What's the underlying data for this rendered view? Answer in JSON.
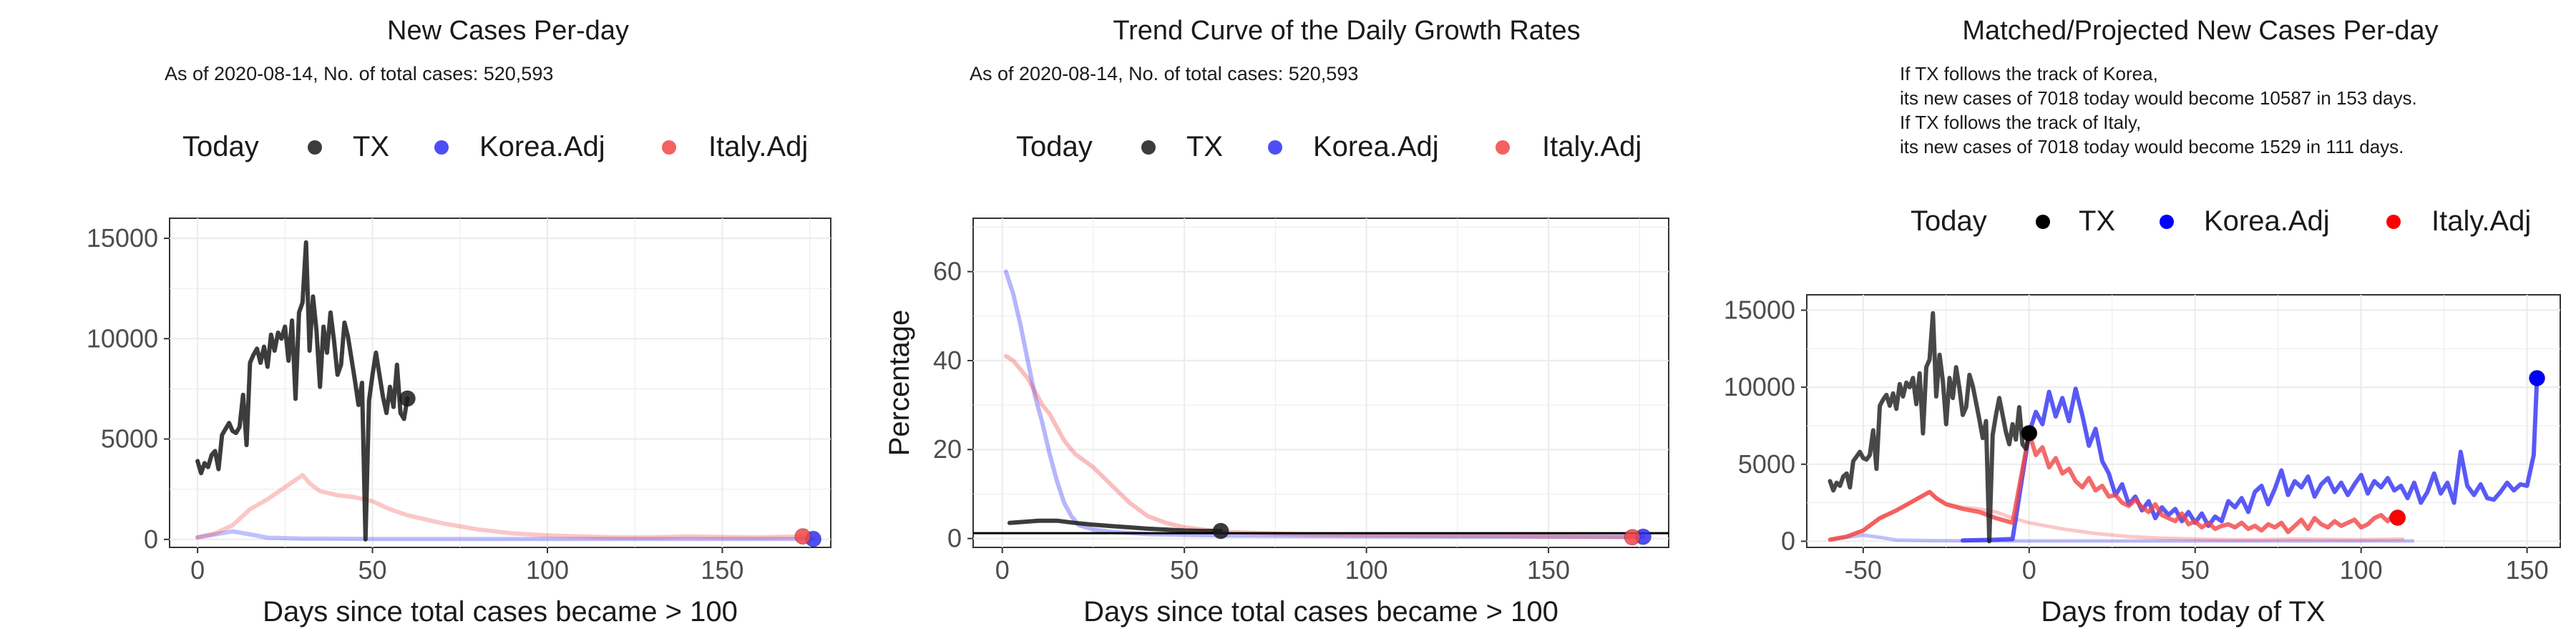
{
  "chart_data": [
    {
      "type": "line",
      "title": "New Cases Per-day",
      "subtitle": "As of 2020-08-14, No. of total cases: 520,593",
      "legend": {
        "title": "Today",
        "entries": [
          "TX",
          "Korea.Adj",
          "Italy.Adj"
        ],
        "position": "top"
      },
      "xlabel": "Days since total cases became > 100",
      "ylabel": "",
      "xlim": [
        -8,
        181
      ],
      "ylim": [
        -400,
        16000
      ],
      "xticks": [
        0,
        50,
        100,
        150
      ],
      "yticks": [
        0,
        5000,
        10000,
        15000
      ],
      "grid": true,
      "series": [
        {
          "name": "TX",
          "color": "#1a1a1a",
          "x": [
            0,
            1,
            2,
            3,
            4,
            5,
            6,
            7,
            8,
            9,
            10,
            11,
            12,
            13,
            14,
            15,
            16,
            17,
            18,
            19,
            20,
            21,
            22,
            23,
            24,
            25,
            26,
            27,
            28,
            29,
            30,
            31,
            32,
            33,
            34,
            35,
            36,
            37,
            38,
            39,
            40,
            41,
            42,
            43,
            44,
            45,
            46,
            47,
            48,
            49,
            50,
            51,
            52,
            53,
            54,
            55,
            56,
            57,
            58,
            59,
            60
          ],
          "y": [
            3900,
            3300,
            3800,
            3600,
            4200,
            4400,
            3500,
            5200,
            5500,
            5800,
            5400,
            5300,
            5600,
            7200,
            4700,
            8800,
            9200,
            9500,
            8800,
            9600,
            8600,
            10200,
            9400,
            10300,
            10000,
            10600,
            8900,
            10900,
            7000,
            11300,
            11800,
            14800,
            9400,
            12100,
            10400,
            7600,
            10600,
            9300,
            11300,
            9900,
            8200,
            8700,
            10800,
            10100,
            9000,
            7900,
            6700,
            7800,
            0,
            6900,
            8200,
            9300,
            8200,
            7100,
            6300,
            7600,
            6600,
            8700,
            6300,
            6000,
            7018
          ]
        },
        {
          "name": "Korea.Adj",
          "color": "#2f2ff5",
          "x": [
            0,
            5,
            10,
            15,
            20,
            30,
            40,
            50,
            60,
            80,
            100,
            120,
            140,
            160,
            176
          ],
          "y": [
            100,
            250,
            400,
            250,
            80,
            40,
            30,
            20,
            20,
            20,
            20,
            20,
            20,
            20,
            20
          ]
        },
        {
          "name": "Italy.Adj",
          "color": "#f14545",
          "x": [
            0,
            5,
            10,
            15,
            20,
            25,
            30,
            32,
            35,
            40,
            45,
            50,
            55,
            60,
            70,
            80,
            90,
            100,
            110,
            120,
            130,
            140,
            150,
            160,
            173
          ],
          "y": [
            100,
            300,
            700,
            1500,
            2000,
            2600,
            3200,
            2800,
            2400,
            2200,
            2100,
            1900,
            1500,
            1200,
            800,
            500,
            300,
            200,
            150,
            100,
            100,
            150,
            120,
            100,
            150
          ]
        }
      ],
      "today_points": [
        {
          "series": "TX",
          "x": 60,
          "y": 7018
        },
        {
          "series": "Korea.Adj",
          "x": 176,
          "y": 20
        },
        {
          "series": "Italy.Adj",
          "x": 173,
          "y": 150
        }
      ]
    },
    {
      "type": "line",
      "title": "Trend Curve of the Daily Growth Rates",
      "subtitle": "As of 2020-08-14, No. of total cases: 520,593",
      "legend": {
        "title": "Today",
        "entries": [
          "TX",
          "Korea.Adj",
          "Italy.Adj"
        ],
        "position": "top"
      },
      "xlabel": "Days since total cases became > 100",
      "ylabel": "Percentage",
      "xlim": [
        -8,
        183
      ],
      "ylim": [
        -2,
        72
      ],
      "xticks": [
        0,
        50,
        100,
        150
      ],
      "yticks": [
        0,
        20,
        40,
        60
      ],
      "grid": true,
      "reference_line_y": 1.2,
      "series": [
        {
          "name": "TX",
          "color": "#1a1a1a",
          "x": [
            2,
            5,
            10,
            15,
            20,
            25,
            30,
            35,
            40,
            45,
            50,
            55,
            60
          ],
          "y": [
            3.5,
            3.7,
            4,
            4,
            3.5,
            3.1,
            2.8,
            2.5,
            2.2,
            2,
            1.8,
            1.7,
            1.7
          ]
        },
        {
          "name": "Korea.Adj",
          "color": "#2f2ff5",
          "x": [
            1,
            3,
            5,
            7,
            9,
            11,
            13,
            15,
            17,
            19,
            21,
            25,
            30,
            40,
            60,
            100,
            176
          ],
          "y": [
            60,
            55,
            48,
            40,
            32,
            26,
            19,
            13,
            8,
            5,
            3,
            2,
            1.5,
            1,
            0.7,
            0.5,
            0.4
          ]
        },
        {
          "name": "Italy.Adj",
          "color": "#f14545",
          "x": [
            1,
            3,
            5,
            7,
            9,
            11,
            13,
            15,
            17,
            20,
            25,
            30,
            35,
            40,
            45,
            50,
            60,
            80,
            100,
            130,
            173
          ],
          "y": [
            41,
            40,
            38,
            36,
            33,
            30,
            28,
            25,
            22,
            19,
            16,
            12,
            8,
            5,
            3.5,
            2.5,
            1.5,
            1,
            0.8,
            0.6,
            0.3
          ]
        }
      ],
      "today_points": [
        {
          "series": "TX",
          "x": 60,
          "y": 1.7
        },
        {
          "series": "Korea.Adj",
          "x": 176,
          "y": 0.4
        },
        {
          "series": "Italy.Adj",
          "x": 173,
          "y": 0.3
        }
      ]
    },
    {
      "type": "line",
      "title": "Matched/Projected New Cases Per-day",
      "annotations": [
        "If TX follows the track of Korea,",
        "its new cases of 7018 today would become 10587 in 153 days.",
        "If TX follows the track of Italy,",
        "its new cases of 7018 today would become 1529 in 111 days."
      ],
      "legend": {
        "title": "Today",
        "entries": [
          "TX",
          "Korea.Adj",
          "Italy.Adj"
        ],
        "position": "top"
      },
      "xlabel": "Days from today of TX",
      "ylabel": "",
      "xlim": [
        -67,
        160
      ],
      "ylim": [
        -400,
        16000
      ],
      "xticks": [
        -50,
        0,
        50,
        100,
        150
      ],
      "yticks": [
        0,
        5000,
        10000,
        15000
      ],
      "grid": true,
      "series": [
        {
          "name": "TX",
          "color": "#1a1a1a",
          "x": [
            -60,
            -59,
            -58,
            -57,
            -56,
            -55,
            -54,
            -53,
            -52,
            -51,
            -50,
            -49,
            -48,
            -47,
            -46,
            -45,
            -44,
            -43,
            -42,
            -41,
            -40,
            -39,
            -38,
            -37,
            -36,
            -35,
            -34,
            -33,
            -32,
            -31,
            -30,
            -29,
            -28,
            -27,
            -26,
            -25,
            -24,
            -23,
            -22,
            -21,
            -20,
            -19,
            -18,
            -17,
            -16,
            -15,
            -14,
            -13,
            -12,
            -11,
            -10,
            -9,
            -8,
            -7,
            -6,
            -5,
            -4,
            -3,
            -2,
            -1,
            0
          ],
          "y": [
            3900,
            3300,
            3800,
            3600,
            4200,
            4400,
            3500,
            5200,
            5500,
            5800,
            5400,
            5300,
            5600,
            7200,
            4700,
            8800,
            9200,
            9500,
            8800,
            9600,
            8600,
            10200,
            9400,
            10300,
            10000,
            10600,
            8900,
            10900,
            7000,
            11300,
            11800,
            14800,
            9400,
            12100,
            10400,
            7600,
            10600,
            9300,
            11300,
            9900,
            8200,
            8700,
            10800,
            10100,
            9000,
            7900,
            6700,
            7800,
            0,
            6900,
            8200,
            9300,
            8200,
            7100,
            6300,
            7600,
            6600,
            8700,
            6300,
            6000,
            7018
          ]
        },
        {
          "name": "Korea.Adj",
          "color": "#2f2ff5",
          "x": [
            -20,
            -10,
            -5,
            0,
            2,
            4,
            6,
            8,
            10,
            12,
            14,
            16,
            18,
            20,
            22,
            24,
            26,
            28,
            30,
            32,
            34,
            36,
            38,
            40,
            42,
            44,
            46,
            48,
            50,
            52,
            54,
            56,
            58,
            60,
            62,
            64,
            66,
            68,
            70,
            72,
            74,
            76,
            78,
            80,
            82,
            84,
            86,
            88,
            90,
            92,
            94,
            96,
            98,
            100,
            102,
            104,
            106,
            108,
            110,
            112,
            114,
            116,
            118,
            120,
            122,
            124,
            126,
            128,
            130,
            132,
            134,
            136,
            138,
            140,
            142,
            144,
            146,
            148,
            150,
            152,
            153
          ],
          "y": [
            50,
            100,
            150,
            7018,
            8400,
            7600,
            9700,
            8100,
            9300,
            7800,
            9900,
            8200,
            6200,
            7300,
            5200,
            4400,
            3000,
            3700,
            2400,
            2900,
            2000,
            2600,
            1500,
            2200,
            1700,
            2100,
            1300,
            1900,
            1200,
            1800,
            1000,
            1600,
            1300,
            2600,
            2200,
            2800,
            1900,
            3200,
            3600,
            2400,
            3400,
            4600,
            3000,
            3900,
            3500,
            4200,
            2900,
            3700,
            4100,
            3200,
            3800,
            3000,
            3700,
            4300,
            3100,
            3900,
            3500,
            4100,
            3300,
            3600,
            2800,
            3800,
            2500,
            3200,
            4400,
            3100,
            3800,
            2500,
            5800,
            3600,
            3000,
            3700,
            2800,
            2700,
            3200,
            3800,
            3300,
            3700,
            3600,
            5600,
            10587
          ]
        },
        {
          "name": "Italy.Adj",
          "color": "#f14545",
          "x": [
            -60,
            -55,
            -50,
            -45,
            -40,
            -35,
            -30,
            -28,
            -25,
            -20,
            -15,
            -10,
            -5,
            0,
            2,
            4,
            6,
            8,
            10,
            12,
            14,
            16,
            18,
            20,
            22,
            24,
            26,
            28,
            30,
            32,
            34,
            36,
            38,
            40,
            42,
            44,
            46,
            48,
            50,
            52,
            54,
            56,
            58,
            60,
            62,
            64,
            66,
            68,
            70,
            72,
            74,
            76,
            78,
            80,
            82,
            84,
            86,
            88,
            90,
            92,
            94,
            96,
            98,
            100,
            102,
            104,
            106,
            108,
            110,
            111
          ],
          "y": [
            100,
            300,
            700,
            1500,
            2000,
            2600,
            3200,
            2800,
            2400,
            2100,
            1900,
            1500,
            1200,
            7018,
            5600,
            6100,
            4800,
            5400,
            4400,
            4700,
            3900,
            3500,
            4100,
            3300,
            3600,
            2900,
            3000,
            2500,
            2300,
            2700,
            2200,
            1900,
            2400,
            1700,
            1500,
            1300,
            1800,
            1100,
            1300,
            900,
            1200,
            800,
            1000,
            1100,
            900,
            1200,
            800,
            1000,
            700,
            1100,
            900,
            1200,
            600,
            1000,
            1400,
            800,
            1500,
            1100,
            900,
            1300,
            1000,
            1200,
            1400,
            900,
            1100,
            1500,
            1700,
            1300,
            1800,
            1529
          ]
        }
      ],
      "today_points": [
        {
          "series": "TX",
          "x": 0,
          "y": 7018
        },
        {
          "series": "Korea.Adj",
          "x": 153,
          "y": 10587
        },
        {
          "series": "Italy.Adj",
          "x": 111,
          "y": 1529
        }
      ]
    }
  ]
}
